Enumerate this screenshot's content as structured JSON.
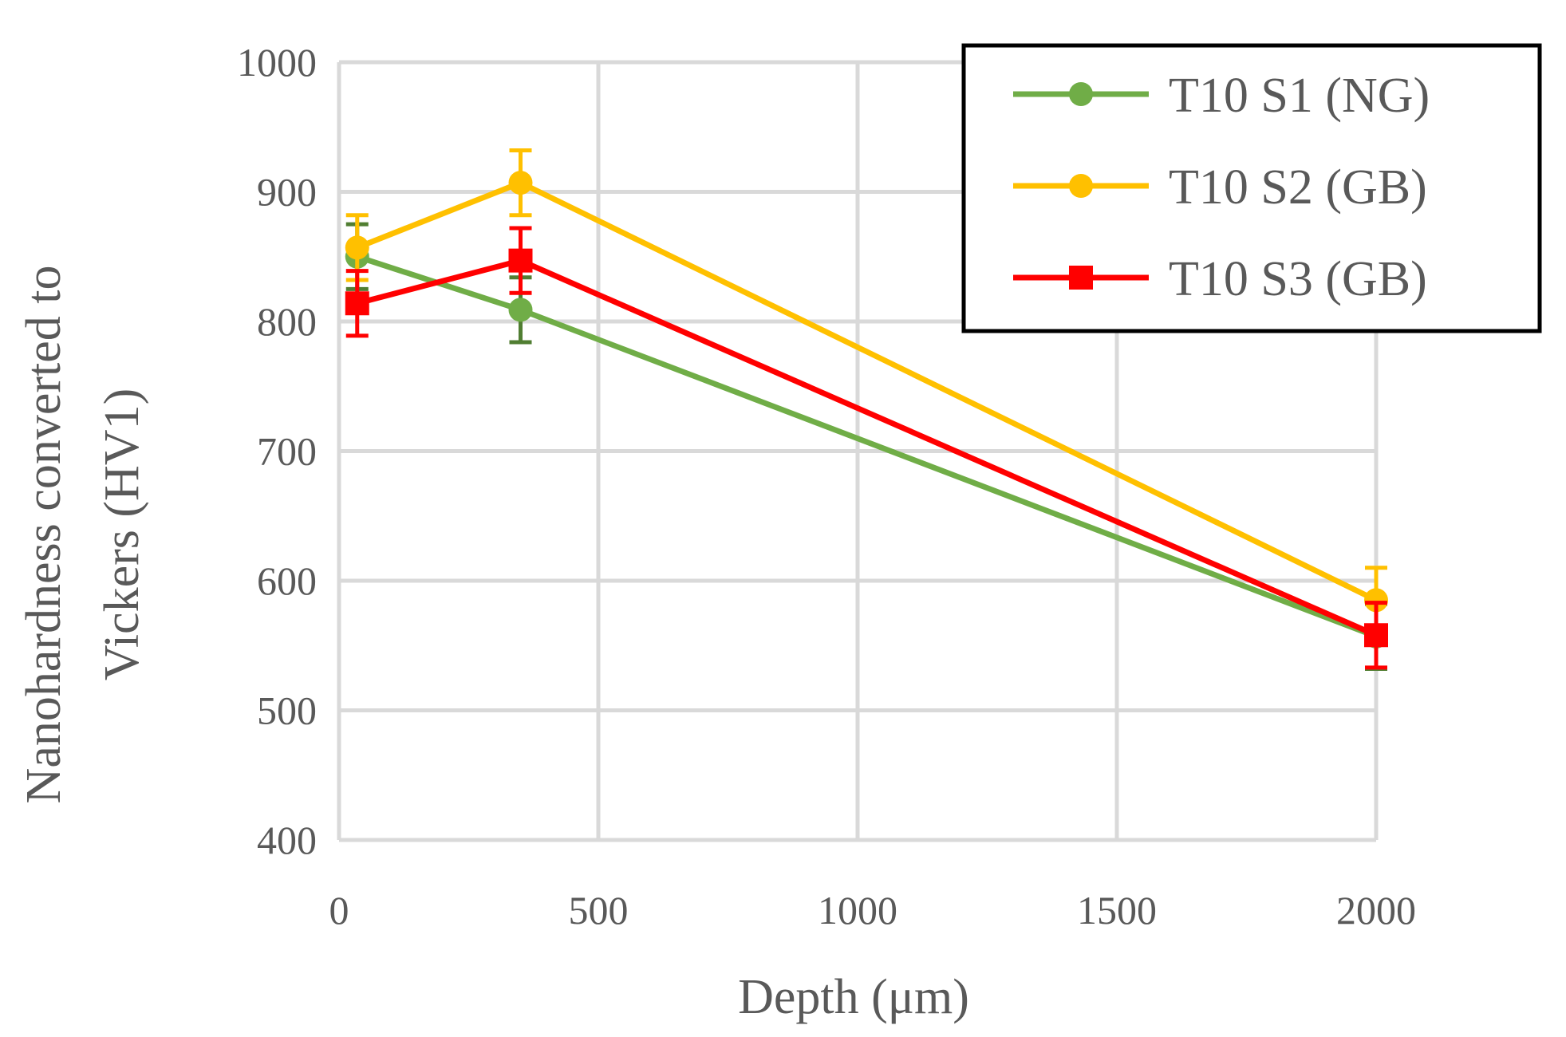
{
  "chart_data": {
    "type": "line",
    "title": "",
    "xlabel": "Depth (μm)",
    "ylabel_lines": [
      "Nanohardness converted to",
      "Vickers (HV1)"
    ],
    "xlim": [
      0,
      2000
    ],
    "ylim": [
      400,
      1000
    ],
    "xticks": [
      0,
      500,
      1000,
      1500,
      2000
    ],
    "yticks": [
      400,
      500,
      600,
      700,
      800,
      900,
      1000
    ],
    "grid": true,
    "legend_position": "top-right",
    "series": [
      {
        "name": "T10 S1 (NG)",
        "color": "#70ad47",
        "error_color": "#507e32",
        "marker": "circle",
        "x": [
          35,
          350,
          2000
        ],
        "y": [
          850,
          809,
          557
        ],
        "error": [
          25,
          25,
          25
        ]
      },
      {
        "name": "T10 S2 (GB)",
        "color": "#ffc000",
        "error_color": "#ffc000",
        "marker": "circle",
        "x": [
          35,
          350,
          2000
        ],
        "y": [
          857,
          907,
          585
        ],
        "error": [
          25,
          25,
          25
        ]
      },
      {
        "name": "T10 S3 (GB)",
        "color": "#ff0000",
        "error_color": "#ff0000",
        "marker": "square",
        "x": [
          35,
          350,
          2000
        ],
        "y": [
          814,
          847,
          558
        ],
        "error": [
          25,
          25,
          25
        ]
      }
    ]
  }
}
